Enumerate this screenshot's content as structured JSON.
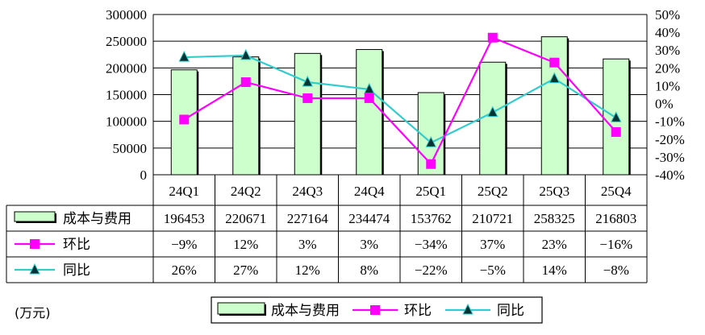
{
  "chart_data": {
    "type": "bar",
    "categories": [
      "24Q1",
      "24Q2",
      "24Q3",
      "24Q4",
      "25Q1",
      "25Q2",
      "25Q3",
      "25Q4"
    ],
    "unit_label": "(万元)",
    "left_axis": {
      "ylim": [
        0,
        300000
      ],
      "ticks": [
        "0",
        "50000",
        "100000",
        "150000",
        "200000",
        "250000",
        "300000"
      ]
    },
    "right_axis": {
      "ylim": [
        -40,
        50
      ],
      "ticks": [
        "-40%",
        "-30%",
        "-20%",
        "-10%",
        "0%",
        "10%",
        "20%",
        "30%",
        "40%",
        "50%"
      ]
    },
    "grid": true,
    "legend_position": "bottom",
    "series": [
      {
        "name": "成本与费用",
        "kind": "bar",
        "axis": "left",
        "color": "#ccffcc",
        "values": [
          196453,
          220671,
          227164,
          234474,
          153762,
          210721,
          258325,
          216803
        ],
        "table_values": [
          "196453",
          "220671",
          "227164",
          "234474",
          "153762",
          "210721",
          "258325",
          "216803"
        ]
      },
      {
        "name": "环比",
        "kind": "line",
        "axis": "right",
        "color": "#ff00ff",
        "marker": "square",
        "values": [
          -9,
          12,
          3,
          3,
          -34,
          37,
          23,
          -16
        ],
        "table_values": [
          "−9%",
          "12%",
          "3%",
          "3%",
          "−34%",
          "37%",
          "23%",
          "−16%"
        ]
      },
      {
        "name": "同比",
        "kind": "line",
        "axis": "right",
        "color": "#33cccc",
        "marker": "triangle",
        "values": [
          26,
          27,
          12,
          8,
          -22,
          -5,
          14,
          -8
        ],
        "table_values": [
          "26%",
          "27%",
          "12%",
          "8%",
          "−22%",
          "−5%",
          "14%",
          "−8%"
        ]
      }
    ]
  }
}
